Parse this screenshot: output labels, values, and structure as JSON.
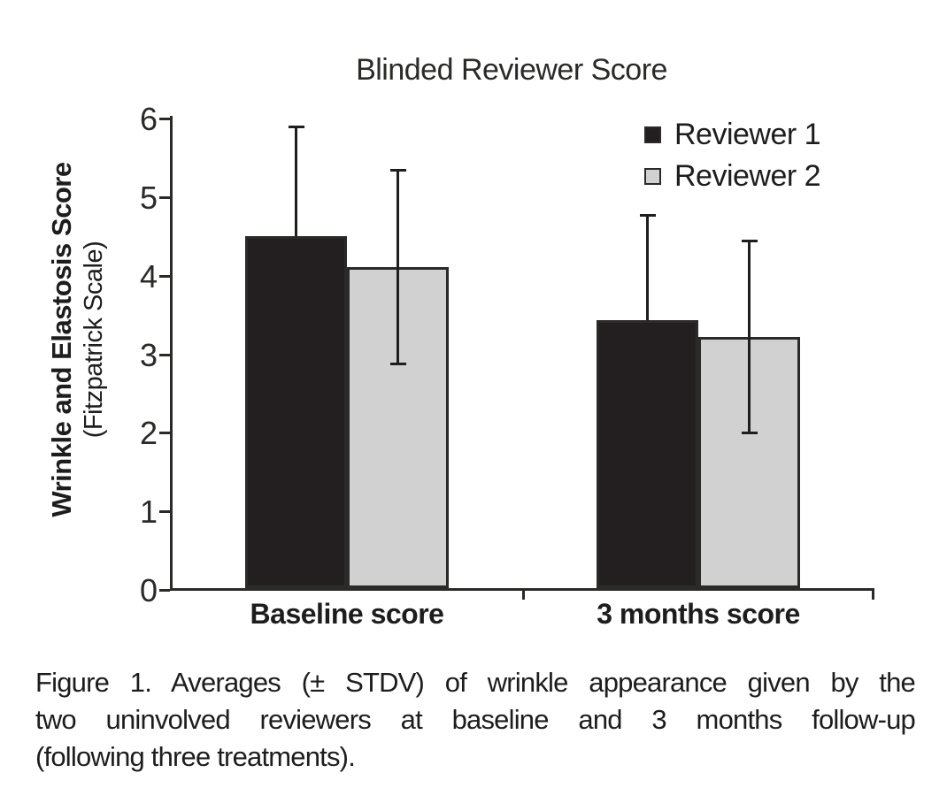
{
  "chart_data": {
    "type": "bar",
    "title": "Blinded Reviewer Score",
    "categories": [
      "Baseline score",
      "3 months score"
    ],
    "series": [
      {
        "name": "Reviewer 1",
        "color": "#231f20",
        "values": [
          4.49,
          3.42
        ],
        "errors": [
          1.41,
          1.35
        ],
        "error_bars_visible": "upper"
      },
      {
        "name": "Reviewer 2",
        "color": "#d1d1d1",
        "values": [
          4.1,
          3.21
        ],
        "errors": [
          1.25,
          1.24
        ],
        "error_bars_visible": "both"
      }
    ],
    "ylabel_line1": "Wrinkle and Elastosis Score",
    "ylabel_line2": "(Fitzpatrick Scale)",
    "xlabel": "",
    "yticks": [
      0,
      1,
      2,
      3,
      4,
      5,
      6
    ],
    "ylim": [
      0,
      6
    ],
    "grid": false,
    "legend_position": "top-right",
    "error_bar_meaning": "± STDV"
  },
  "caption": {
    "full_text": "Figure 1. Averages (± STDV) of wrinkle appearance given by the two uninvolved reviewers at baseline and 3 months follow-up (following three treatments).",
    "lines": [
      "Figure 1. Averages (± STDV) of wrinkle appearance given by the",
      "two uninvolved reviewers at baseline and 3 months follow-up",
      "(following three treatments)."
    ]
  },
  "colors": {
    "reviewer1_fill": "#231f20",
    "reviewer2_fill": "#d1d1d1",
    "bar_border": "#2b2a29",
    "axis": "#2b2a29",
    "text": "#1d1d1d",
    "background": "#ffffff"
  }
}
